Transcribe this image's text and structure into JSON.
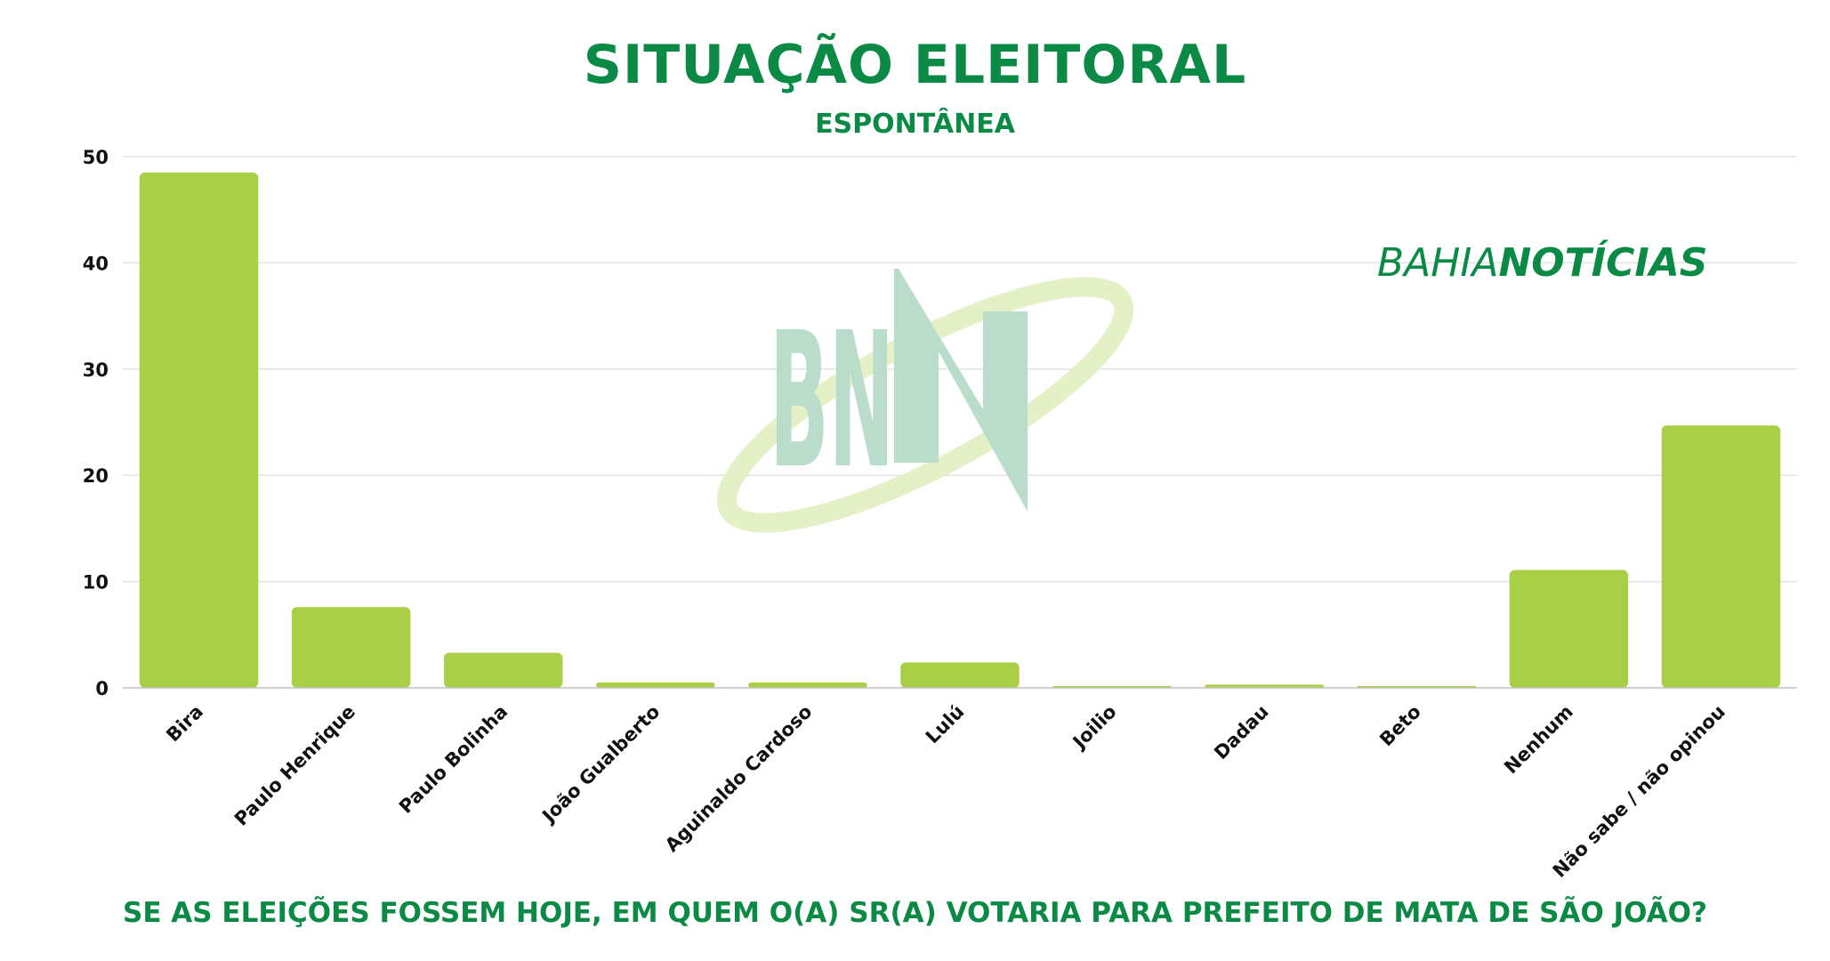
{
  "brand": {
    "part1": "BAHIA",
    "part2": "NOTÍCIAS",
    "watermark": "BN",
    "colors": {
      "green": "#0a8a45",
      "bar": "#a8cf45",
      "watermark_letters": "#b9dccb",
      "watermark_swoosh": "#e4f1c7"
    }
  },
  "chart_data": {
    "type": "bar",
    "title": "SITUAÇÃO ELEITORAL",
    "subtitle": "ESPONTÂNEA",
    "question": "SE AS ELEIÇÕES FOSSEM HOJE, EM QUEM O(A) SR(A) VOTARIA PARA PREFEITO DE MATA DE SÃO JOÃO?",
    "categories": [
      "Bira",
      "Paulo Henrique",
      "Paulo Bolinha",
      "João Gualberto",
      "Aguinaldo Cardoso",
      "Lulú",
      "Joilio",
      "Dadau",
      "Beto",
      "Nenhum",
      "Não sabe / não opinou"
    ],
    "values": [
      48.5,
      7.6,
      3.3,
      0.5,
      0.5,
      2.4,
      0.1,
      0.3,
      0.1,
      11.1,
      24.7
    ],
    "yticks": [
      "0",
      "10",
      "20",
      "30",
      "40",
      "50"
    ],
    "ylim": [
      0,
      50
    ],
    "grid": true,
    "bar_color": "#a8cf45",
    "grid_color": "#e3e3e3"
  }
}
